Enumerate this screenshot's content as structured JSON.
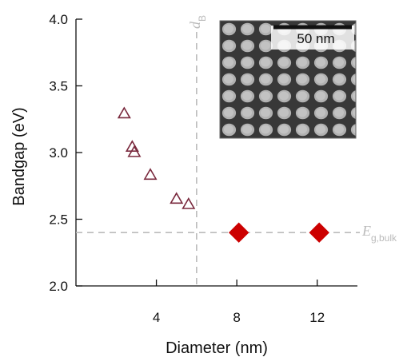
{
  "chart_data": {
    "type": "scatter",
    "xlabel": "Diameter (nm)",
    "ylabel": "Bandgap (eV)",
    "xlim": [
      0,
      14
    ],
    "ylim": [
      2.0,
      4.0
    ],
    "xticks": [
      4,
      8,
      12
    ],
    "yticks": [
      2.0,
      2.5,
      3.0,
      3.5,
      4.0
    ],
    "ytick_labels": [
      "2.0",
      "2.5",
      "3.0",
      "3.5",
      "4.0"
    ],
    "series": [
      {
        "marker": "triangle-open",
        "color": "#7a2a3e",
        "x": [
          2.4,
          2.8,
          2.9,
          3.7,
          5.0,
          5.6
        ],
        "y": [
          3.29,
          3.04,
          3.0,
          2.83,
          2.65,
          2.61
        ]
      },
      {
        "marker": "diamond-filled",
        "color": "#cc0000",
        "x": [
          8.1,
          12.1
        ],
        "y": [
          2.4,
          2.4
        ]
      }
    ],
    "reference_lines": {
      "horizontal": {
        "y": 2.4,
        "label": "E",
        "label_sub": "g,bulk",
        "color": "#bbbbbb"
      },
      "vertical": {
        "x": 6.0,
        "label": "d",
        "label_sub": "B",
        "color": "#bbbbbb"
      }
    },
    "inset": {
      "content": "TEM micrograph of nanocrystals",
      "scale_bar_label": "50 nm"
    }
  }
}
